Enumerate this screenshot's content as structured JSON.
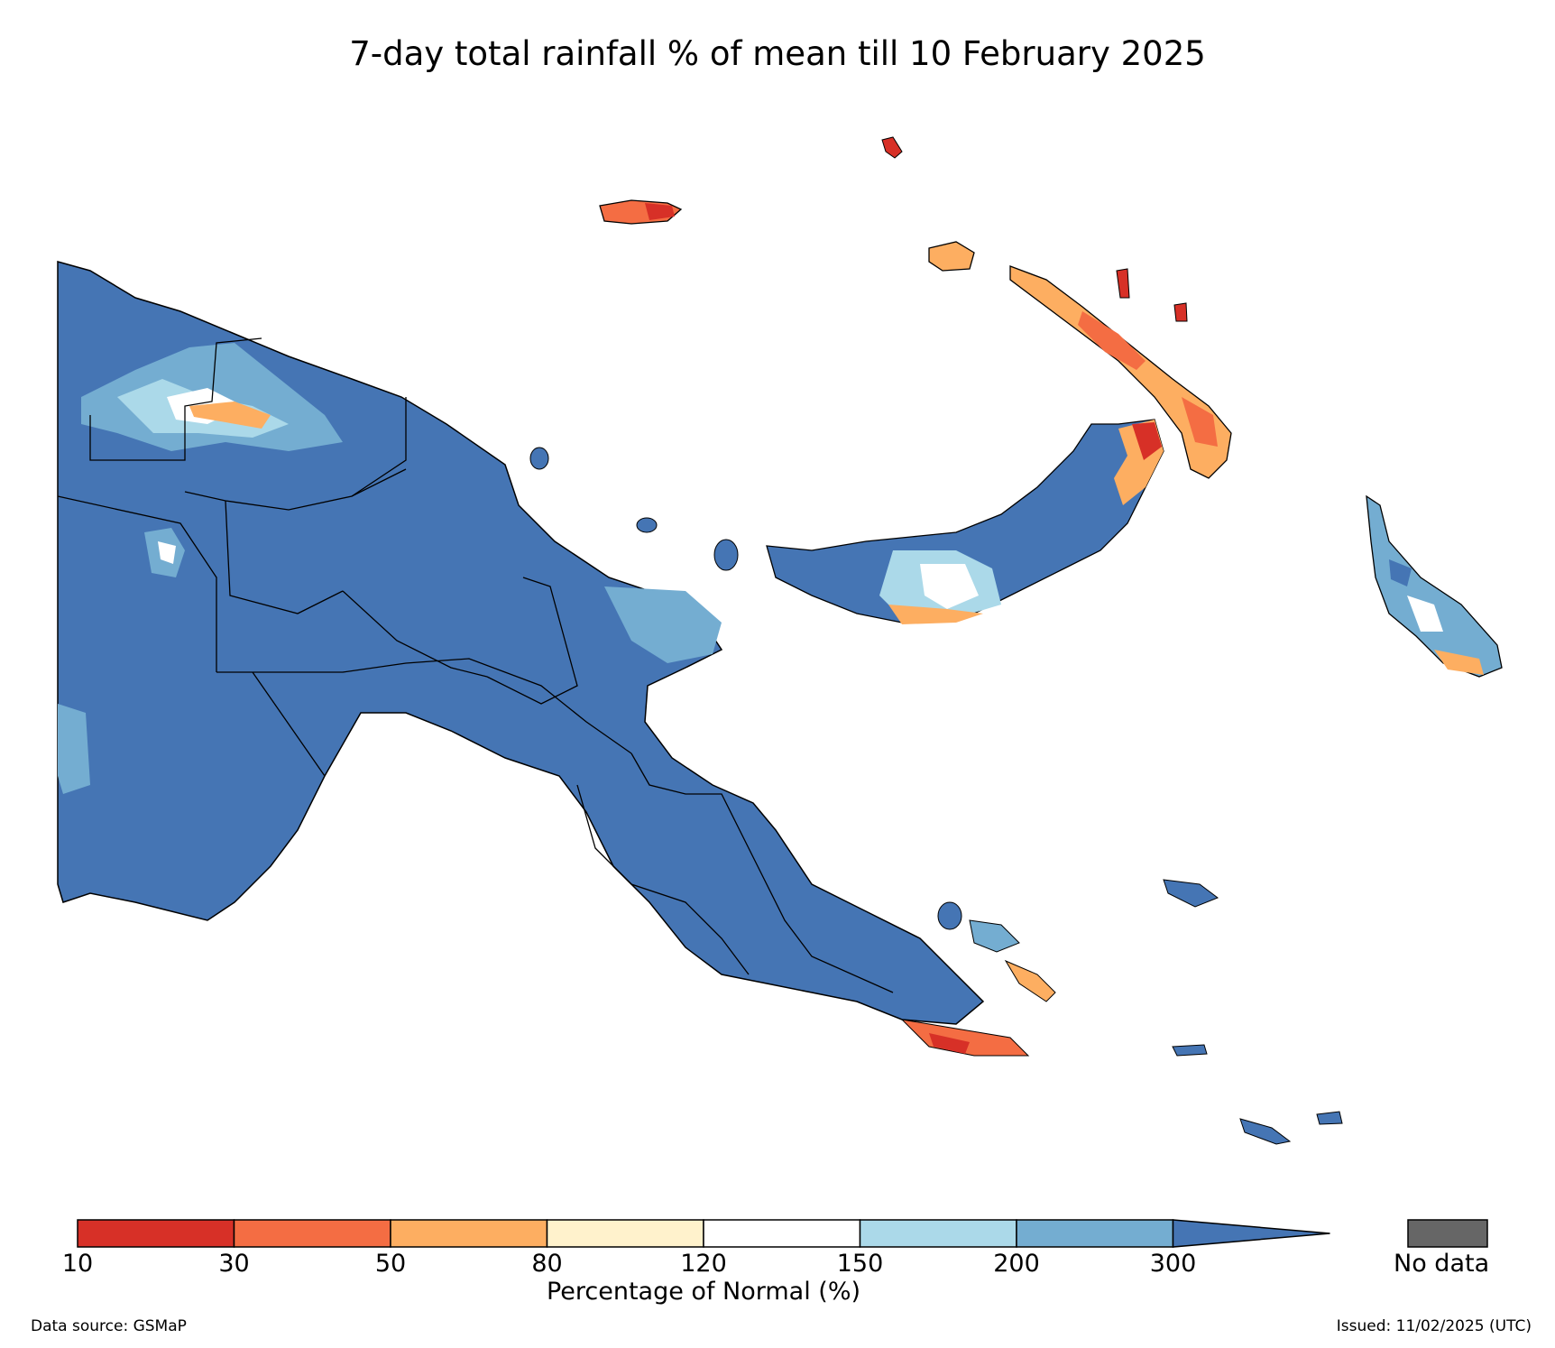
{
  "title": "7-day total rainfall % of mean till 10 February 2025",
  "colors": {
    "red": "#d73027",
    "orange_dark": "#f46d43",
    "orange_light": "#fdae61",
    "cream": "#fee090",
    "pale": "#fff2cc",
    "white": "#ffffff",
    "blue_light": "#abd9e9",
    "blue_mid": "#74add1",
    "blue_dark": "#4575b4",
    "no_data": "#666666"
  },
  "colorbar": {
    "label": "Percentage of Normal (%)",
    "ticks": [
      "10",
      "30",
      "50",
      "80",
      "120",
      "150",
      "200",
      "300"
    ],
    "bins": [
      "#d73027",
      "#f46d43",
      "#fdae61",
      "#fff2cc",
      "#ffffff",
      "#abd9e9",
      "#74add1"
    ],
    "extend_color": "#4575b4",
    "no_data_label": "No data",
    "no_data_color": "#666666"
  },
  "footer": {
    "source": "Data source: GSMaP",
    "issued": "Issued: 11/02/2025 (UTC)"
  }
}
